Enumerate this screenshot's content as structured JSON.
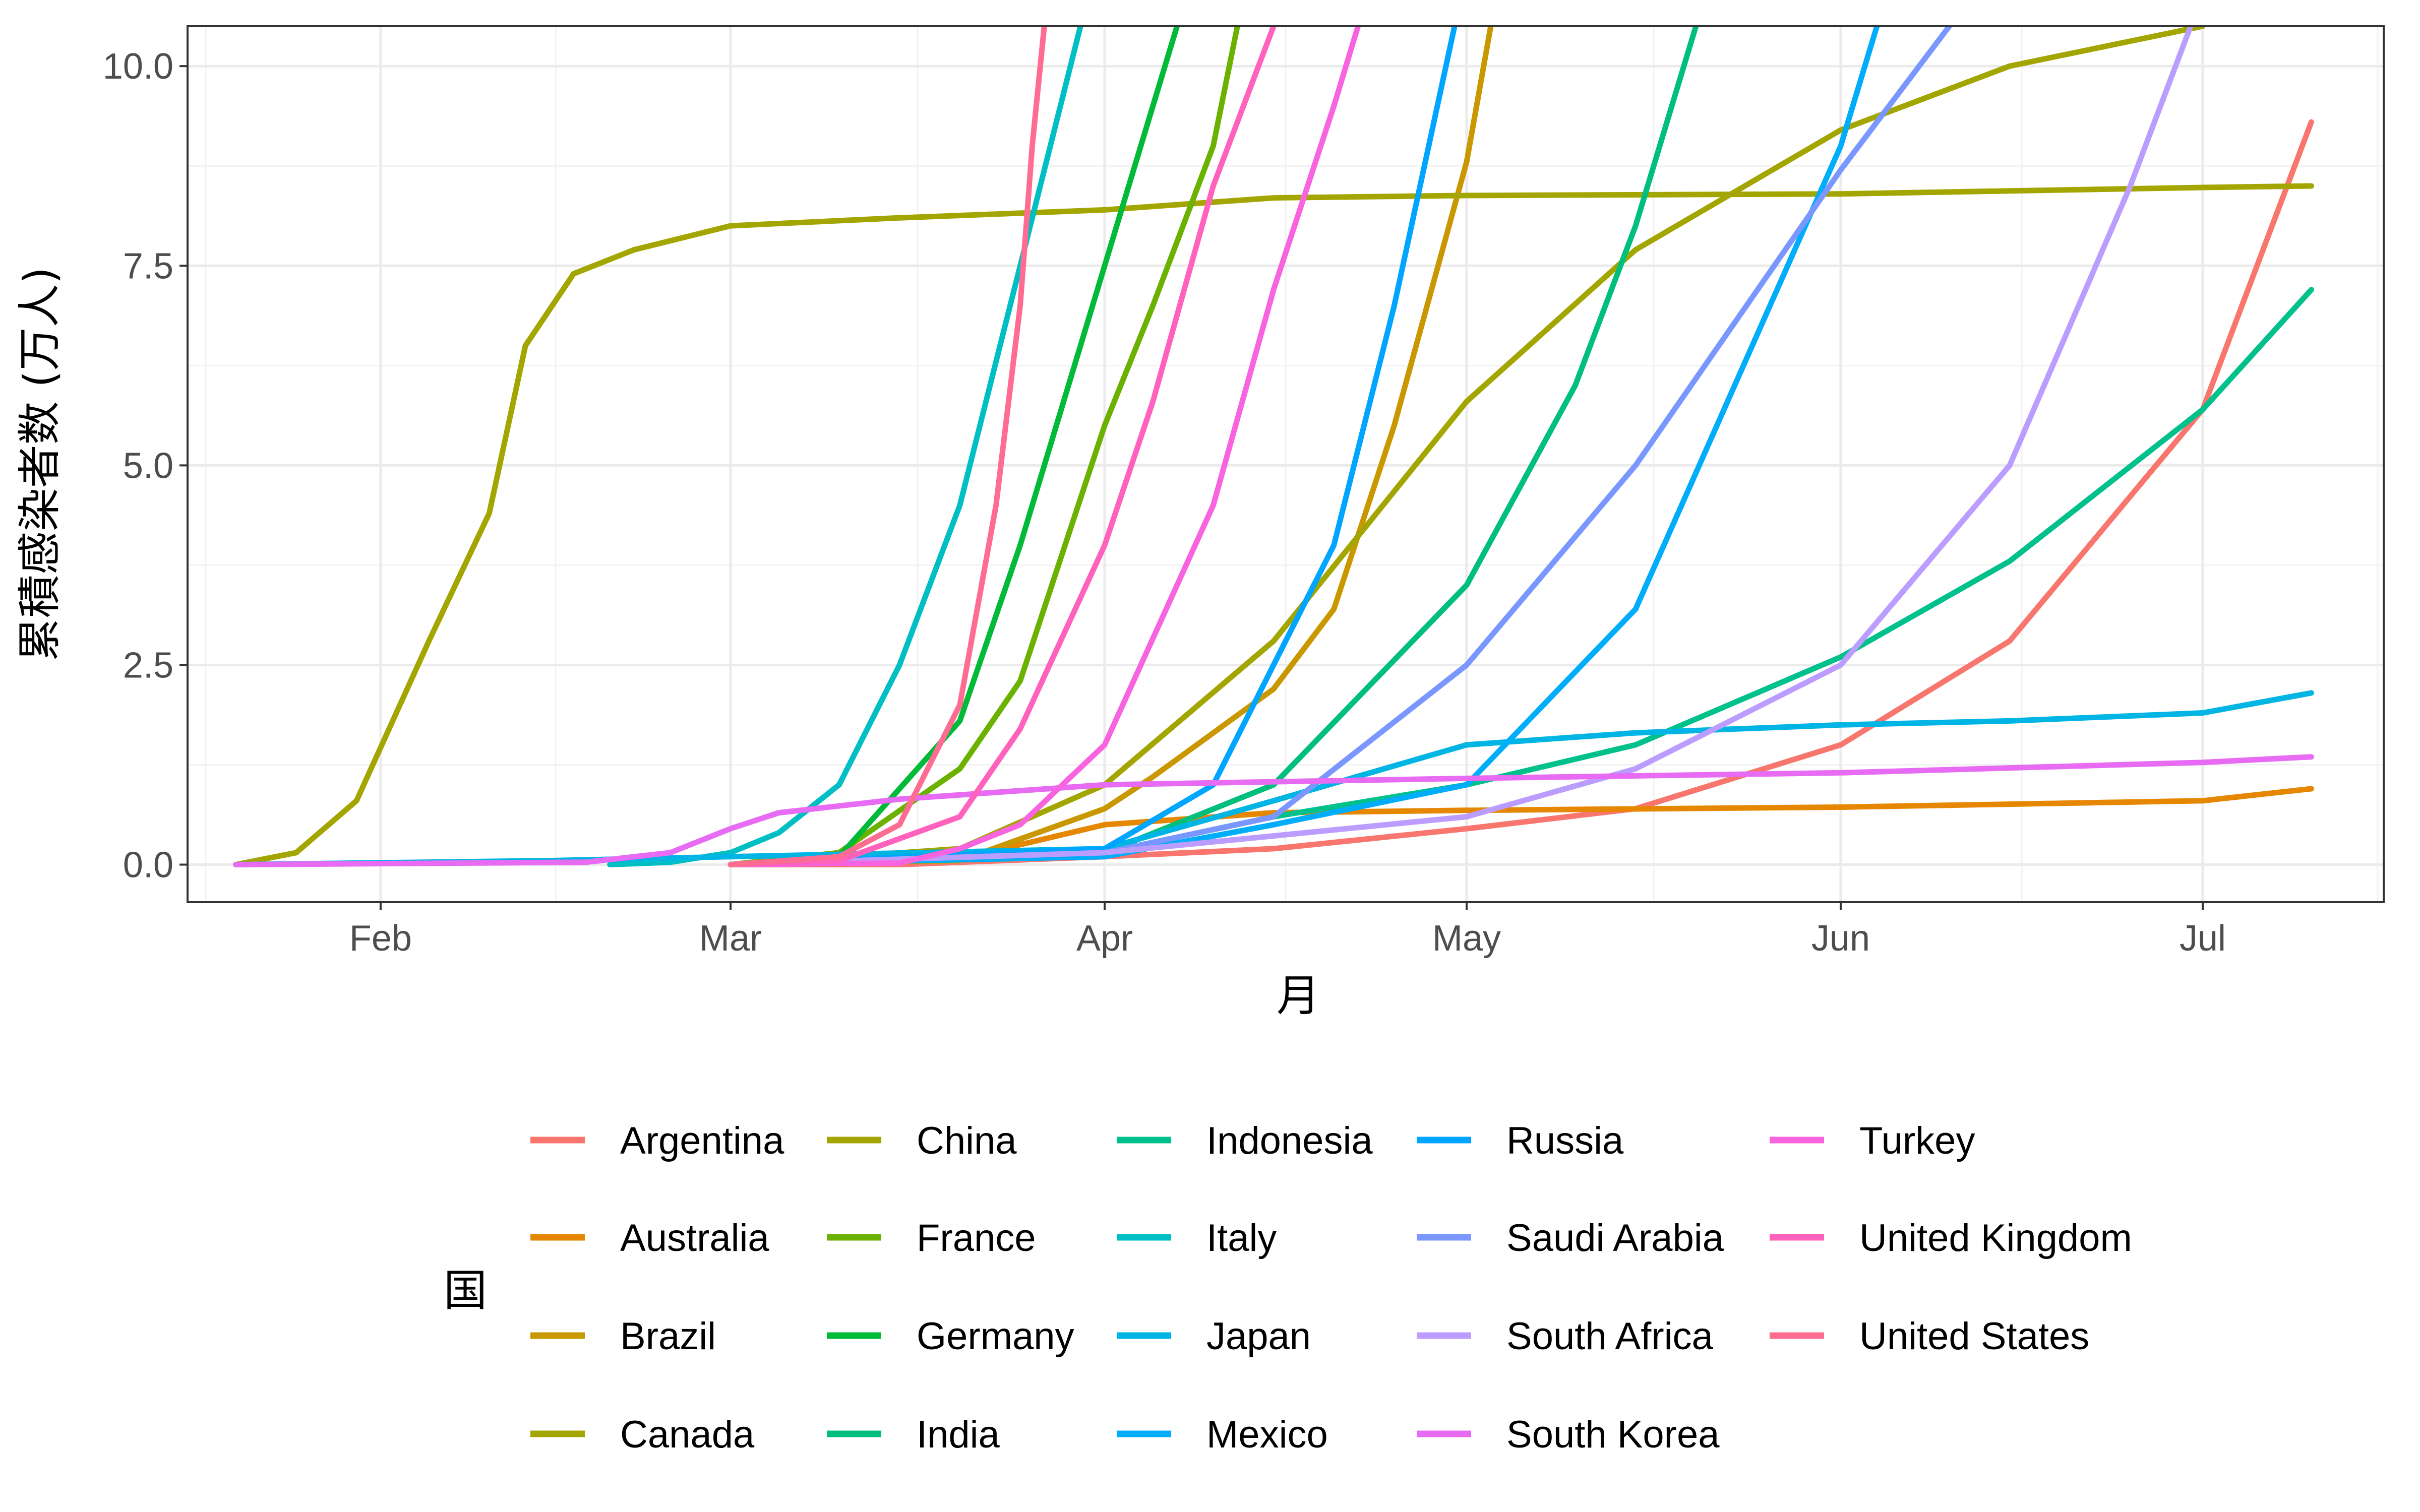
{
  "chart_data": {
    "type": "line",
    "xlabel": "月",
    "ylabel": "累積感染者数 (万人)",
    "legend_title": "国",
    "legend_placement": "bottom",
    "grid": true,
    "xlim": [
      "2020-01-16",
      "2020-07-16"
    ],
    "ylim": [
      -0.47,
      10.5
    ],
    "x_ticks": [
      {
        "date": "2020-02-01",
        "label": "Feb"
      },
      {
        "date": "2020-03-01",
        "label": "Mar"
      },
      {
        "date": "2020-04-01",
        "label": "Apr"
      },
      {
        "date": "2020-05-01",
        "label": "May"
      },
      {
        "date": "2020-06-01",
        "label": "Jun"
      },
      {
        "date": "2020-07-01",
        "label": "Jul"
      }
    ],
    "y_ticks": [
      {
        "value": 0,
        "label": "0.0"
      },
      {
        "value": 2.5,
        "label": "2.5"
      },
      {
        "value": 5,
        "label": "5.0"
      },
      {
        "value": 7.5,
        "label": "7.5"
      },
      {
        "value": 10,
        "label": "10.0"
      }
    ],
    "series": [
      {
        "name": "Argentina",
        "color": "#F8766D",
        "points": [
          [
            "2020-03-01",
            0
          ],
          [
            "2020-03-15",
            0
          ],
          [
            "2020-04-01",
            0.1
          ],
          [
            "2020-04-15",
            0.2
          ],
          [
            "2020-05-01",
            0.45
          ],
          [
            "2020-05-15",
            0.7
          ],
          [
            "2020-06-01",
            1.5
          ],
          [
            "2020-06-15",
            2.8
          ],
          [
            "2020-07-01",
            5.7
          ],
          [
            "2020-07-10",
            9.3
          ]
        ]
      },
      {
        "name": "Australia",
        "color": "#E58700",
        "points": [
          [
            "2020-03-01",
            0
          ],
          [
            "2020-03-10",
            0.01
          ],
          [
            "2020-03-15",
            0.03
          ],
          [
            "2020-03-20",
            0.1
          ],
          [
            "2020-03-25",
            0.25
          ],
          [
            "2020-04-01",
            0.5
          ],
          [
            "2020-04-15",
            0.65
          ],
          [
            "2020-05-01",
            0.68
          ],
          [
            "2020-06-01",
            0.72
          ],
          [
            "2020-07-01",
            0.8
          ],
          [
            "2020-07-10",
            0.95
          ]
        ]
      },
      {
        "name": "Brazil",
        "color": "#C99800",
        "points": [
          [
            "2020-03-01",
            0
          ],
          [
            "2020-03-20",
            0.05
          ],
          [
            "2020-04-01",
            0.7
          ],
          [
            "2020-04-05",
            1.1
          ],
          [
            "2020-04-15",
            2.2
          ],
          [
            "2020-04-20",
            3.2
          ],
          [
            "2020-04-25",
            5.5
          ],
          [
            "2020-05-01",
            8.8
          ],
          [
            "2020-05-03",
            10.5
          ]
        ]
      },
      {
        "name": "Canada",
        "color": "#A3A500",
        "points": [
          [
            "2020-03-01",
            0
          ],
          [
            "2020-03-20",
            0.2
          ],
          [
            "2020-04-01",
            1.0
          ],
          [
            "2020-04-15",
            2.8
          ],
          [
            "2020-05-01",
            5.8
          ],
          [
            "2020-05-15",
            7.7
          ],
          [
            "2020-06-01",
            9.2
          ],
          [
            "2020-06-15",
            10.0
          ],
          [
            "2020-07-01",
            10.5
          ]
        ]
      },
      {
        "name": "China",
        "color": "#A3A500",
        "points": [
          [
            "2020-01-20",
            0
          ],
          [
            "2020-01-25",
            0.15
          ],
          [
            "2020-01-30",
            0.8
          ],
          [
            "2020-02-05",
            2.8
          ],
          [
            "2020-02-10",
            4.4
          ],
          [
            "2020-02-13",
            6.5
          ],
          [
            "2020-02-17",
            7.4
          ],
          [
            "2020-02-22",
            7.7
          ],
          [
            "2020-03-01",
            8.0
          ],
          [
            "2020-03-15",
            8.1
          ],
          [
            "2020-04-01",
            8.2
          ],
          [
            "2020-04-15",
            8.35
          ],
          [
            "2020-05-01",
            8.38
          ],
          [
            "2020-06-01",
            8.4
          ],
          [
            "2020-07-01",
            8.48
          ],
          [
            "2020-07-10",
            8.5
          ]
        ]
      },
      {
        "name": "France",
        "color": "#6BB100",
        "points": [
          [
            "2020-03-01",
            0
          ],
          [
            "2020-03-10",
            0.15
          ],
          [
            "2020-03-20",
            1.2
          ],
          [
            "2020-03-25",
            2.3
          ],
          [
            "2020-04-01",
            5.5
          ],
          [
            "2020-04-05",
            7.0
          ],
          [
            "2020-04-10",
            9.0
          ],
          [
            "2020-04-12",
            10.5
          ]
        ]
      },
      {
        "name": "Germany",
        "color": "#00BA38",
        "points": [
          [
            "2020-03-01",
            0
          ],
          [
            "2020-03-10",
            0.1
          ],
          [
            "2020-03-20",
            1.8
          ],
          [
            "2020-03-25",
            4.0
          ],
          [
            "2020-04-01",
            7.5
          ],
          [
            "2020-04-05",
            9.5
          ],
          [
            "2020-04-07",
            10.5
          ]
        ]
      },
      {
        "name": "India",
        "color": "#00BF7D",
        "points": [
          [
            "2020-03-01",
            0
          ],
          [
            "2020-04-01",
            0.15
          ],
          [
            "2020-04-15",
            1.0
          ],
          [
            "2020-05-01",
            3.5
          ],
          [
            "2020-05-10",
            6.0
          ],
          [
            "2020-05-15",
            8.0
          ],
          [
            "2020-05-20",
            10.5
          ]
        ]
      },
      {
        "name": "Indonesia",
        "color": "#00C08B",
        "points": [
          [
            "2020-03-01",
            0
          ],
          [
            "2020-04-01",
            0.15
          ],
          [
            "2020-04-15",
            0.6
          ],
          [
            "2020-05-01",
            1.0
          ],
          [
            "2020-05-15",
            1.5
          ],
          [
            "2020-06-01",
            2.6
          ],
          [
            "2020-06-15",
            3.8
          ],
          [
            "2020-07-01",
            5.7
          ],
          [
            "2020-07-10",
            7.2
          ]
        ]
      },
      {
        "name": "Italy",
        "color": "#00BFC4",
        "points": [
          [
            "2020-02-20",
            0
          ],
          [
            "2020-02-25",
            0.03
          ],
          [
            "2020-03-01",
            0.15
          ],
          [
            "2020-03-05",
            0.4
          ],
          [
            "2020-03-10",
            1.0
          ],
          [
            "2020-03-15",
            2.5
          ],
          [
            "2020-03-20",
            4.5
          ],
          [
            "2020-03-25",
            7.5
          ],
          [
            "2020-03-30",
            10.5
          ]
        ]
      },
      {
        "name": "Japan",
        "color": "#00B4E4",
        "points": [
          [
            "2020-01-20",
            0
          ],
          [
            "2020-02-15",
            0.05
          ],
          [
            "2020-03-01",
            0.1
          ],
          [
            "2020-04-01",
            0.2
          ],
          [
            "2020-04-15",
            0.8
          ],
          [
            "2020-05-01",
            1.5
          ],
          [
            "2020-05-15",
            1.65
          ],
          [
            "2020-06-01",
            1.75
          ],
          [
            "2020-06-15",
            1.8
          ],
          [
            "2020-07-01",
            1.9
          ],
          [
            "2020-07-10",
            2.15
          ]
        ]
      },
      {
        "name": "Mexico",
        "color": "#00ADFA",
        "points": [
          [
            "2020-03-01",
            0
          ],
          [
            "2020-04-01",
            0.1
          ],
          [
            "2020-04-15",
            0.5
          ],
          [
            "2020-05-01",
            1.0
          ],
          [
            "2020-05-15",
            3.2
          ],
          [
            "2020-06-01",
            9.0
          ],
          [
            "2020-06-04",
            10.5
          ]
        ]
      },
      {
        "name": "Russia",
        "color": "#00A5FF",
        "points": [
          [
            "2020-03-01",
            0
          ],
          [
            "2020-04-01",
            0.2
          ],
          [
            "2020-04-10",
            1.0
          ],
          [
            "2020-04-20",
            4.0
          ],
          [
            "2020-04-25",
            7.0
          ],
          [
            "2020-04-30",
            10.5
          ]
        ]
      },
      {
        "name": "Saudi Arabia",
        "color": "#7997FF",
        "points": [
          [
            "2020-03-01",
            0
          ],
          [
            "2020-04-01",
            0.15
          ],
          [
            "2020-04-15",
            0.6
          ],
          [
            "2020-05-01",
            2.5
          ],
          [
            "2020-05-15",
            5.0
          ],
          [
            "2020-06-01",
            8.7
          ],
          [
            "2020-06-10",
            10.5
          ]
        ]
      },
      {
        "name": "South Africa",
        "color": "#BB9DFF",
        "points": [
          [
            "2020-03-01",
            0
          ],
          [
            "2020-04-01",
            0.15
          ],
          [
            "2020-05-01",
            0.6
          ],
          [
            "2020-05-15",
            1.2
          ],
          [
            "2020-06-01",
            2.5
          ],
          [
            "2020-06-15",
            5.0
          ],
          [
            "2020-06-25",
            8.5
          ],
          [
            "2020-06-30",
            10.5
          ]
        ]
      },
      {
        "name": "South Korea",
        "color": "#E76BF3",
        "points": [
          [
            "2020-01-20",
            0
          ],
          [
            "2020-02-18",
            0.03
          ],
          [
            "2020-02-25",
            0.15
          ],
          [
            "2020-03-01",
            0.45
          ],
          [
            "2020-03-05",
            0.65
          ],
          [
            "2020-03-15",
            0.82
          ],
          [
            "2020-04-01",
            1.0
          ],
          [
            "2020-05-01",
            1.08
          ],
          [
            "2020-06-01",
            1.15
          ],
          [
            "2020-07-01",
            1.28
          ],
          [
            "2020-07-10",
            1.35
          ]
        ]
      },
      {
        "name": "Turkey",
        "color": "#F863DF",
        "points": [
          [
            "2020-03-01",
            0
          ],
          [
            "2020-03-15",
            0.02
          ],
          [
            "2020-03-20",
            0.2
          ],
          [
            "2020-03-25",
            0.5
          ],
          [
            "2020-04-01",
            1.5
          ],
          [
            "2020-04-10",
            4.5
          ],
          [
            "2020-04-15",
            7.2
          ],
          [
            "2020-04-20",
            9.5
          ],
          [
            "2020-04-22",
            10.5
          ]
        ]
      },
      {
        "name": "United Kingdom",
        "color": "#FF62BC",
        "points": [
          [
            "2020-03-01",
            0
          ],
          [
            "2020-03-10",
            0.05
          ],
          [
            "2020-03-20",
            0.6
          ],
          [
            "2020-03-25",
            1.7
          ],
          [
            "2020-04-01",
            4.0
          ],
          [
            "2020-04-05",
            5.8
          ],
          [
            "2020-04-10",
            8.5
          ],
          [
            "2020-04-15",
            10.5
          ]
        ]
      },
      {
        "name": "United States",
        "color": "#FF6C91",
        "points": [
          [
            "2020-03-01",
            0
          ],
          [
            "2020-03-10",
            0.1
          ],
          [
            "2020-03-15",
            0.5
          ],
          [
            "2020-03-20",
            2.0
          ],
          [
            "2020-03-23",
            4.5
          ],
          [
            "2020-03-25",
            7.0
          ],
          [
            "2020-03-26",
            9.0
          ],
          [
            "2020-03-27",
            10.5
          ]
        ]
      }
    ]
  }
}
